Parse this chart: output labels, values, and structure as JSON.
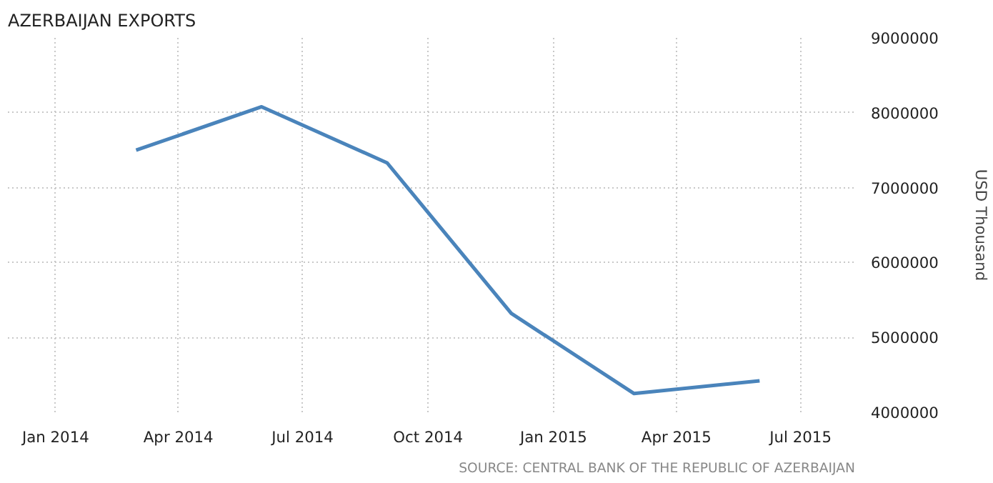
{
  "chart_data": {
    "type": "line",
    "title": "AZERBAIJAN EXPORTS",
    "ylabel": "USD Thousand",
    "x": [
      "2014-03",
      "2014-06",
      "2014-09",
      "2014-12",
      "2015-03",
      "2015-06"
    ],
    "series": [
      {
        "color": "#4a84bb",
        "values": [
          7500000,
          8080000,
          7330000,
          5320000,
          4250000,
          4420000
        ]
      }
    ],
    "xlim": [
      "2013-11-27",
      "2015-08-10"
    ],
    "xticks": [
      {
        "value": "2014-01",
        "label": "Jan 2014"
      },
      {
        "value": "2014-04",
        "label": "Apr 2014"
      },
      {
        "value": "2014-07",
        "label": "Jul 2014"
      },
      {
        "value": "2014-10",
        "label": "Oct 2014"
      },
      {
        "value": "2015-01",
        "label": "Jan 2015"
      },
      {
        "value": "2015-04",
        "label": "Apr 2015"
      },
      {
        "value": "2015-07",
        "label": "Jul 2015"
      }
    ],
    "ylim": [
      4000000,
      9000000
    ],
    "yticks": [
      4000000,
      5000000,
      6000000,
      7000000,
      8000000,
      9000000
    ],
    "grid": true,
    "annotations": [
      "SOURCE: CENTRAL BANK OF THE REPUBLIC OF AZERBAIJAN"
    ]
  }
}
